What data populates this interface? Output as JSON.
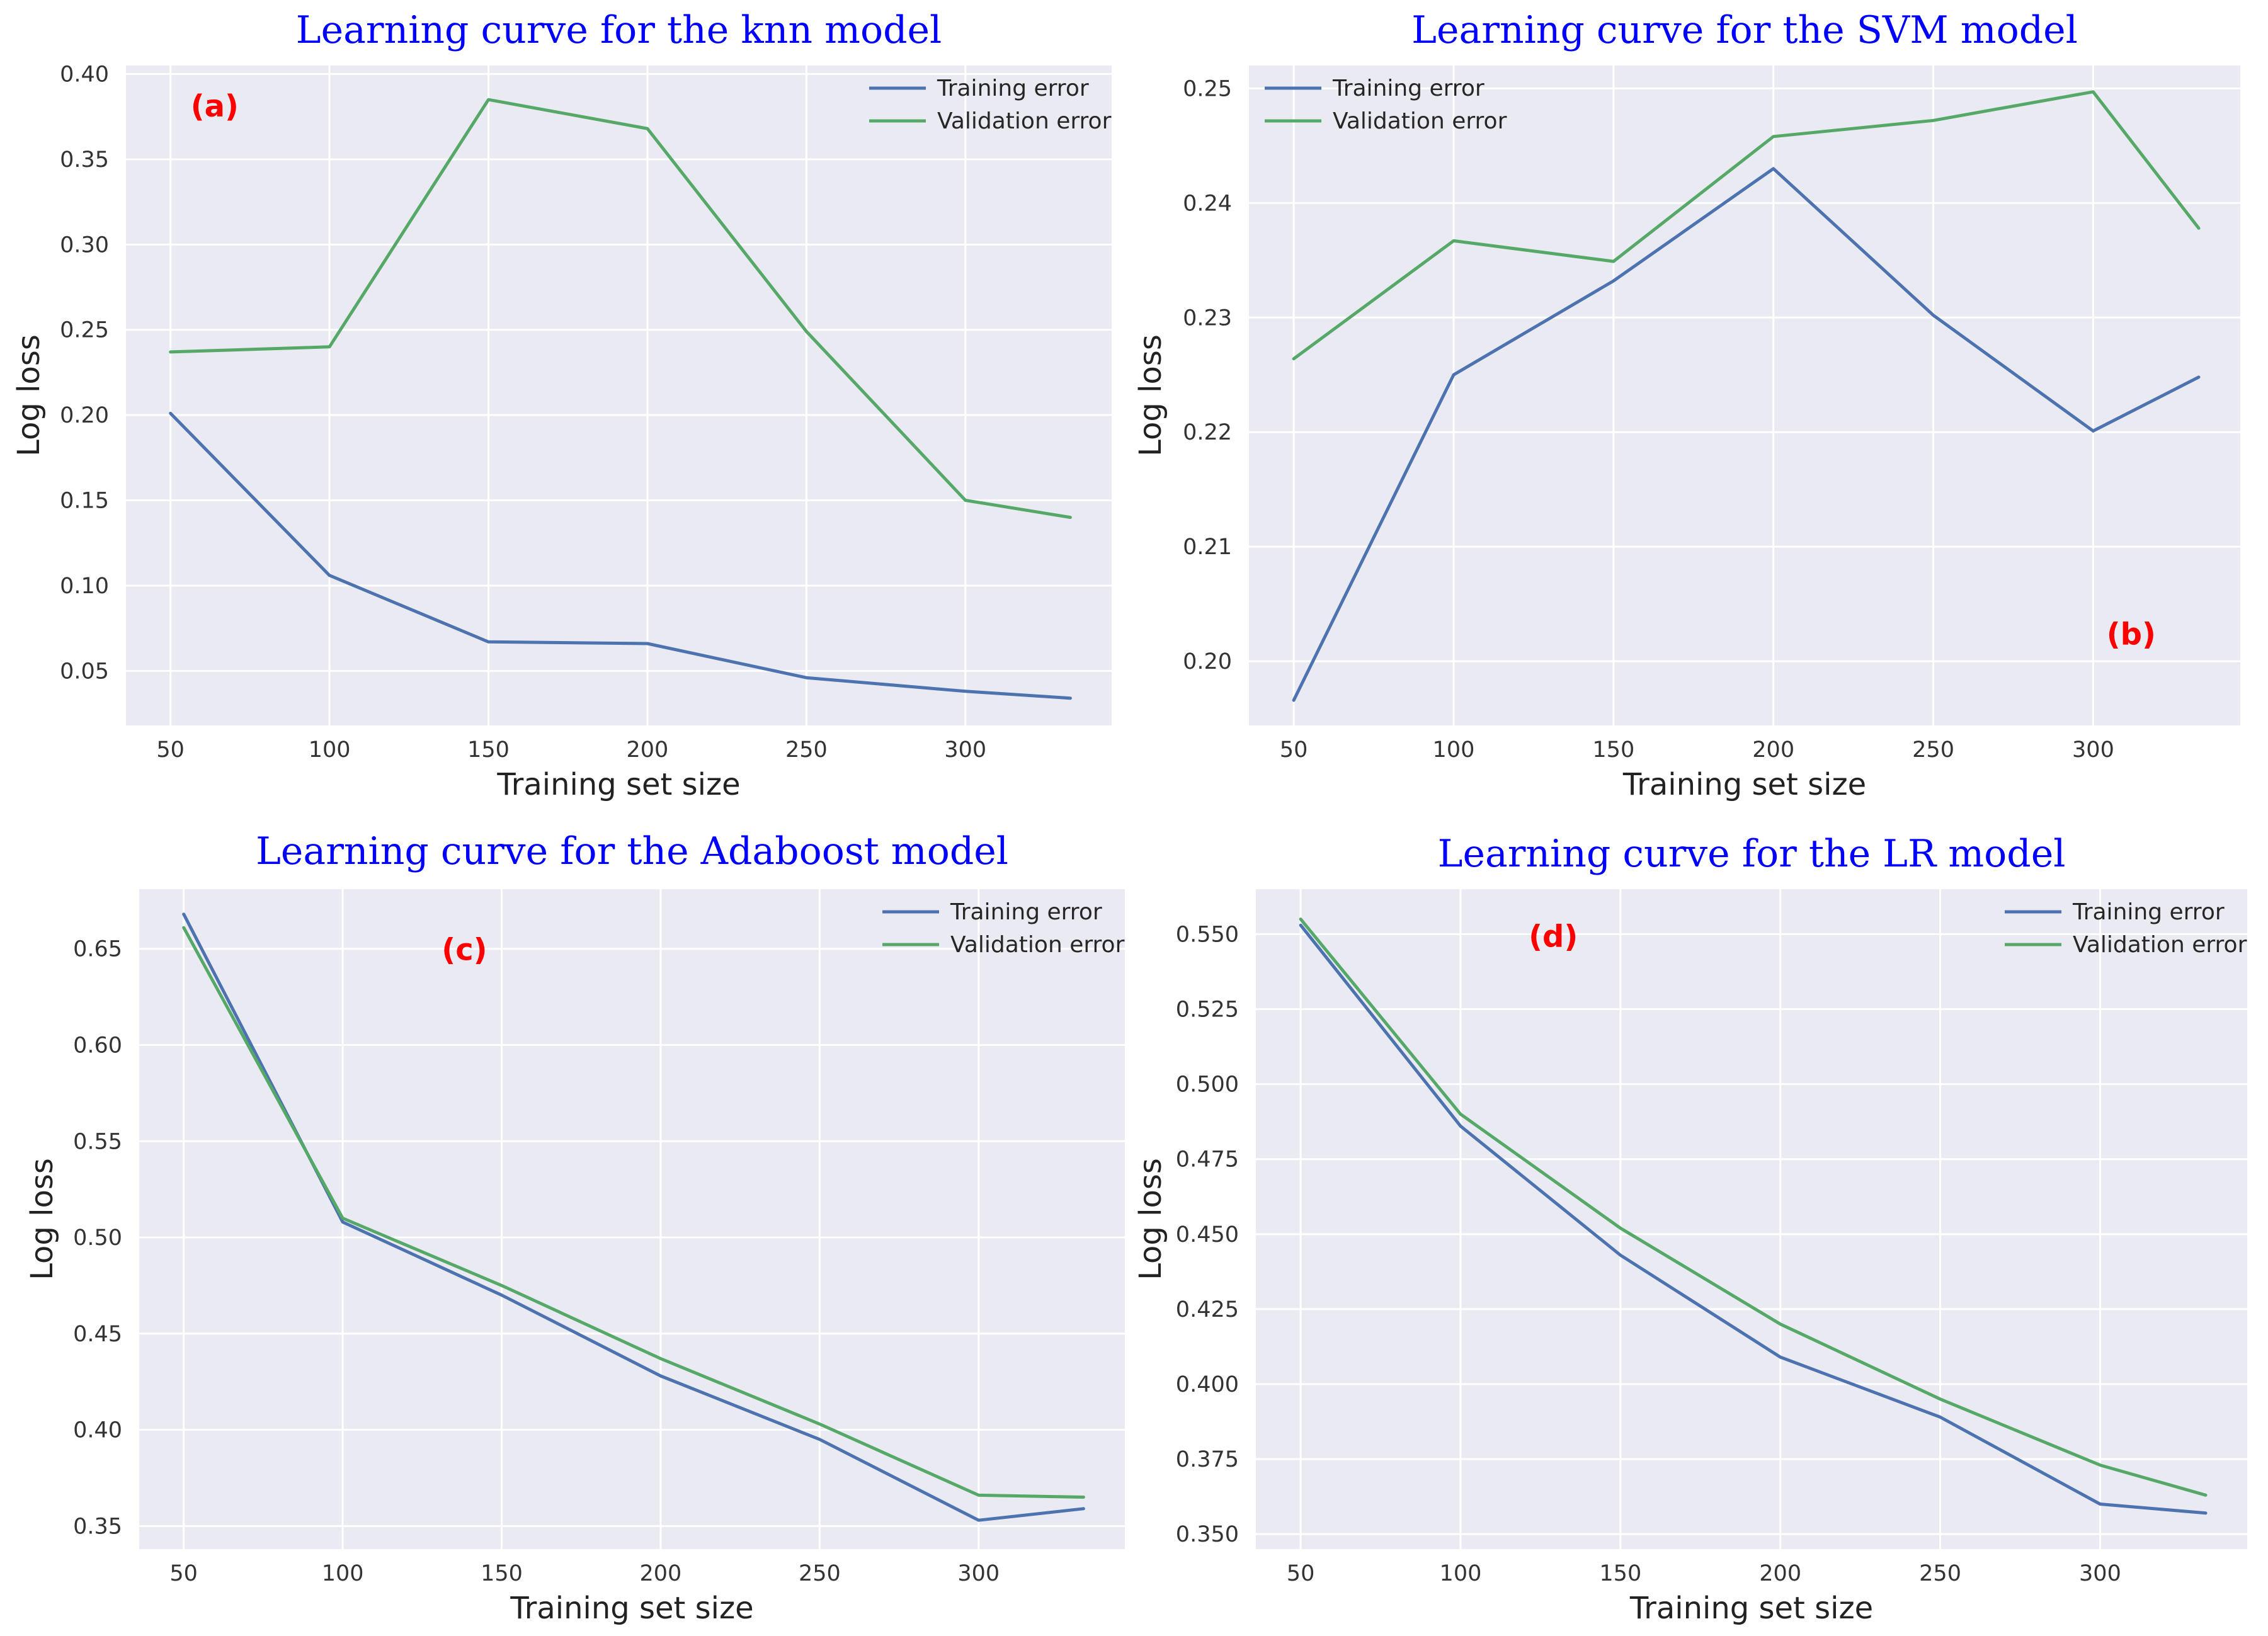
{
  "chart_data": [
    {
      "type": "line",
      "title": "Learning curve for the knn model",
      "panel_label": "(a)",
      "xlabel": "Training set size",
      "ylabel": "Log loss",
      "x": [
        50,
        100,
        150,
        200,
        250,
        300,
        333
      ],
      "xticks": [
        50,
        100,
        150,
        200,
        250,
        300
      ],
      "xtick_labels": [
        "50",
        "100",
        "150",
        "200",
        "250",
        "300"
      ],
      "yticks": [
        0.05,
        0.1,
        0.15,
        0.2,
        0.25,
        0.3,
        0.35,
        0.4
      ],
      "ytick_labels": [
        "0.05",
        "0.10",
        "0.15",
        "0.20",
        "0.25",
        "0.30",
        "0.35",
        "0.40"
      ],
      "xlim": [
        36,
        346
      ],
      "ylim": [
        0.018,
        0.405
      ],
      "legend_position": "top-right",
      "grid": true,
      "series": [
        {
          "name": "Training error",
          "color": "#4c72b0",
          "values": [
            0.201,
            0.106,
            0.067,
            0.066,
            0.046,
            0.038,
            0.034
          ]
        },
        {
          "name": "Validation error",
          "color": "#55a868",
          "values": [
            0.237,
            0.24,
            0.385,
            0.368,
            0.249,
            0.15,
            0.14
          ]
        }
      ]
    },
    {
      "type": "line",
      "title": "Learning curve for the SVM model",
      "panel_label": "(b)",
      "xlabel": "Training set size",
      "ylabel": "Log loss",
      "x": [
        50,
        100,
        150,
        200,
        250,
        300,
        333
      ],
      "xticks": [
        50,
        100,
        150,
        200,
        250,
        300
      ],
      "xtick_labels": [
        "50",
        "100",
        "150",
        "200",
        "250",
        "300"
      ],
      "yticks": [
        0.2,
        0.21,
        0.22,
        0.23,
        0.24,
        0.25
      ],
      "ytick_labels": [
        "0.20",
        "0.21",
        "0.22",
        "0.23",
        "0.24",
        "0.25"
      ],
      "xlim": [
        36,
        346
      ],
      "ylim": [
        0.1944,
        0.252
      ],
      "legend_position": "top-left",
      "grid": true,
      "series": [
        {
          "name": "Training error",
          "color": "#4c72b0",
          "values": [
            0.1966,
            0.225,
            0.2332,
            0.243,
            0.2302,
            0.2201,
            0.2248
          ]
        },
        {
          "name": "Validation error",
          "color": "#55a868",
          "values": [
            0.2264,
            0.2367,
            0.2349,
            0.2458,
            0.2472,
            0.2497,
            0.2378
          ]
        }
      ]
    },
    {
      "type": "line",
      "title": "Learning curve for the Adaboost model",
      "panel_label": "(c)",
      "xlabel": "Training set size",
      "ylabel": "Log loss",
      "x": [
        50,
        100,
        150,
        200,
        250,
        300,
        333
      ],
      "xticks": [
        50,
        100,
        150,
        200,
        250,
        300
      ],
      "xtick_labels": [
        "50",
        "100",
        "150",
        "200",
        "250",
        "300"
      ],
      "yticks": [
        0.35,
        0.4,
        0.45,
        0.5,
        0.55,
        0.6,
        0.65
      ],
      "ytick_labels": [
        "0.35",
        "0.40",
        "0.45",
        "0.50",
        "0.55",
        "0.60",
        "0.65"
      ],
      "xlim": [
        36,
        346
      ],
      "ylim": [
        0.338,
        0.681
      ],
      "legend_position": "top-right",
      "grid": true,
      "series": [
        {
          "name": "Training error",
          "color": "#4c72b0",
          "values": [
            0.668,
            0.508,
            0.47,
            0.428,
            0.395,
            0.353,
            0.359
          ]
        },
        {
          "name": "Validation error",
          "color": "#55a868",
          "values": [
            0.661,
            0.51,
            0.475,
            0.437,
            0.403,
            0.366,
            0.365
          ]
        }
      ]
    },
    {
      "type": "line",
      "title": "Learning curve for the LR model",
      "panel_label": "(d)",
      "xlabel": "Training set size",
      "ylabel": "Log loss",
      "x": [
        50,
        100,
        150,
        200,
        250,
        300,
        333
      ],
      "xticks": [
        50,
        100,
        150,
        200,
        250,
        300
      ],
      "xtick_labels": [
        "50",
        "100",
        "150",
        "200",
        "250",
        "300"
      ],
      "yticks": [
        0.35,
        0.375,
        0.4,
        0.425,
        0.45,
        0.475,
        0.5,
        0.525,
        0.55
      ],
      "ytick_labels": [
        "0.350",
        "0.375",
        "0.400",
        "0.425",
        "0.450",
        "0.475",
        "0.500",
        "0.525",
        "0.550"
      ],
      "xlim": [
        36,
        346
      ],
      "ylim": [
        0.345,
        0.565
      ],
      "legend_position": "top-right",
      "grid": true,
      "series": [
        {
          "name": "Training error",
          "color": "#4c72b0",
          "values": [
            0.553,
            0.486,
            0.443,
            0.409,
            0.389,
            0.36,
            0.357
          ]
        },
        {
          "name": "Validation error",
          "color": "#55a868",
          "values": [
            0.555,
            0.49,
            0.452,
            0.42,
            0.395,
            0.373,
            0.363
          ]
        }
      ]
    }
  ]
}
